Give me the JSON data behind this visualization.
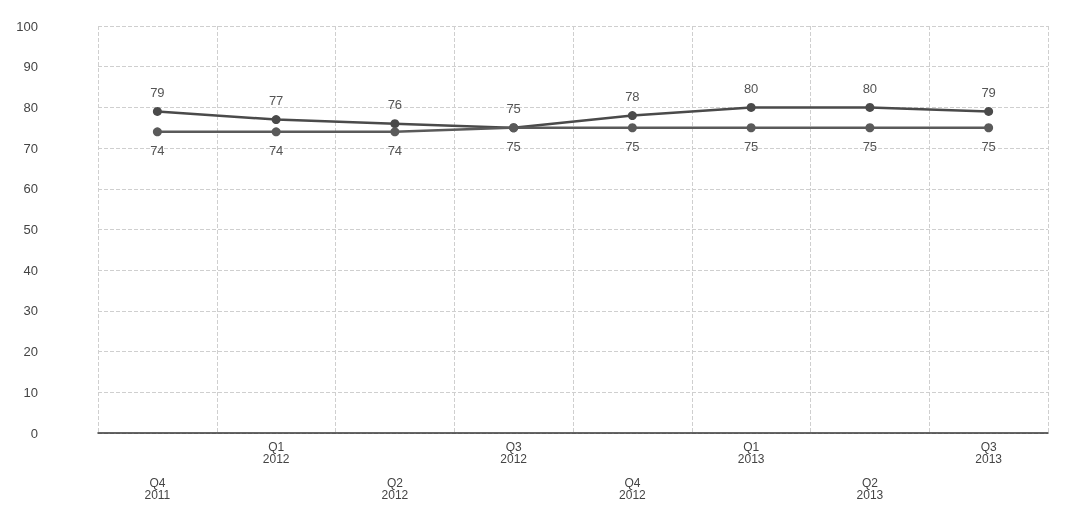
{
  "chart_data": {
    "type": "line",
    "categories": [
      "Q4\n2011",
      "Q1\n2012",
      "Q2\n2012",
      "Q3\n2012",
      "Q4\n2012",
      "Q1\n2013",
      "Q2\n2013",
      "Q3\n2013"
    ],
    "series": [
      {
        "color": "#4a4a4a",
        "values": [
          79,
          77,
          76,
          75,
          78,
          80,
          80,
          79
        ]
      },
      {
        "color": "#5a5a5a",
        "values": [
          74,
          74,
          74,
          75,
          75,
          75,
          75,
          75
        ]
      }
    ],
    "ylim": [
      0,
      100
    ],
    "yticks": [
      0,
      10,
      20,
      30,
      40,
      50,
      60,
      70,
      80,
      90,
      100
    ],
    "grid": true,
    "marker": "circle",
    "line_style": "solid",
    "data_labels": true
  }
}
